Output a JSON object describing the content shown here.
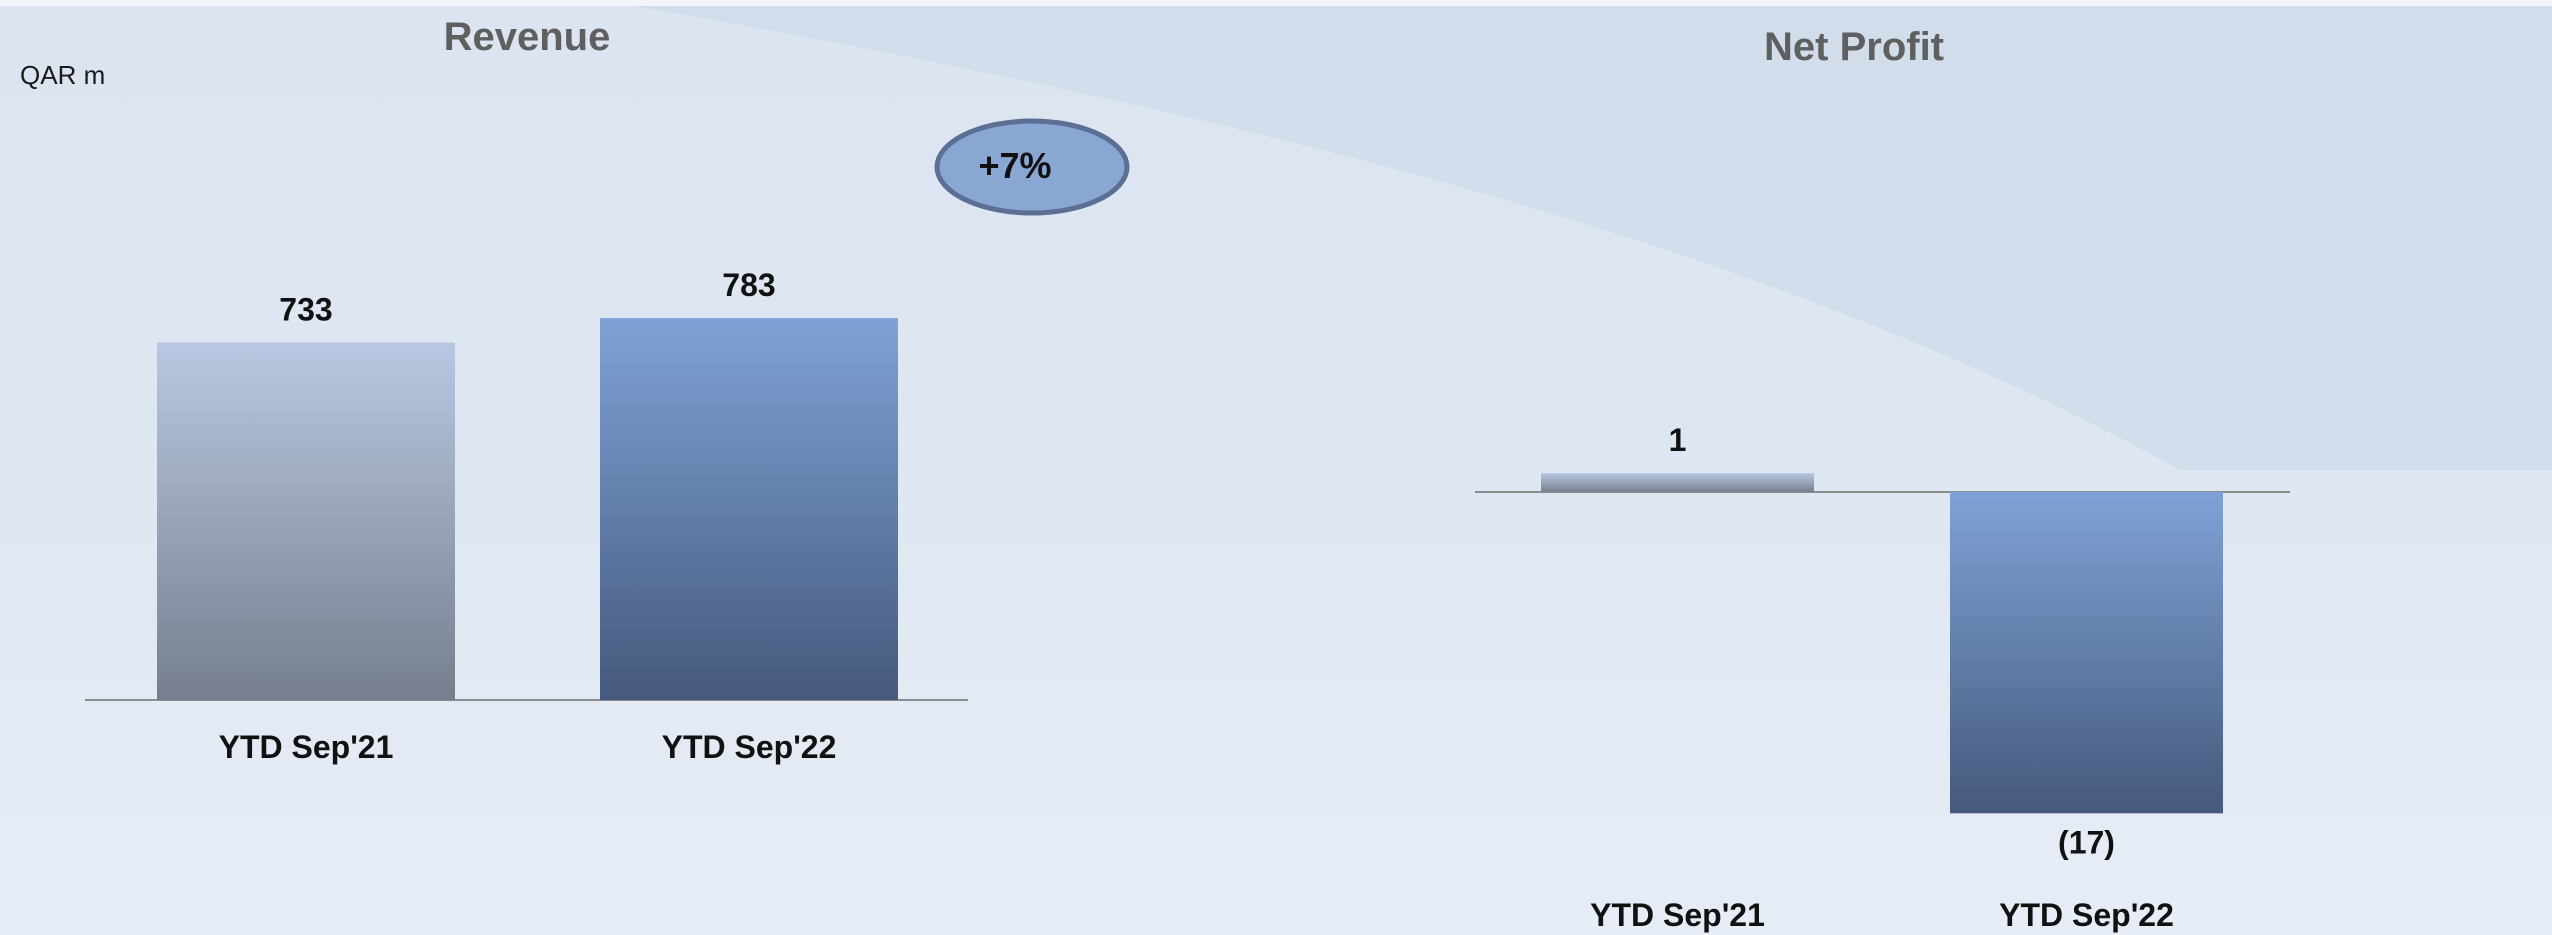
{
  "unit_label": "QAR m",
  "colors": {
    "bar_prior_top": "#b8c8e2",
    "bar_prior_bottom": "#777f8e",
    "bar_current_top": "#7fa2d6",
    "bar_current_bottom": "#45597c",
    "badge_fill": "#8aa6d2",
    "badge_stroke": "#5a6f93",
    "axis": "#8c8c8c"
  },
  "chart_data": [
    {
      "type": "bar",
      "title": "Revenue",
      "categories": [
        "YTD Sep'21",
        "YTD Sep'22"
      ],
      "values": [
        733,
        783
      ],
      "value_labels": [
        "733",
        "783"
      ],
      "ylim": [
        0,
        900
      ],
      "change_badge": "+7%"
    },
    {
      "type": "bar",
      "title": "Net Profit",
      "categories": [
        "YTD Sep'21",
        "YTD Sep'22"
      ],
      "values": [
        1,
        -17
      ],
      "value_labels": [
        "1",
        "(17)"
      ],
      "ylim": [
        -20,
        20
      ]
    }
  ]
}
